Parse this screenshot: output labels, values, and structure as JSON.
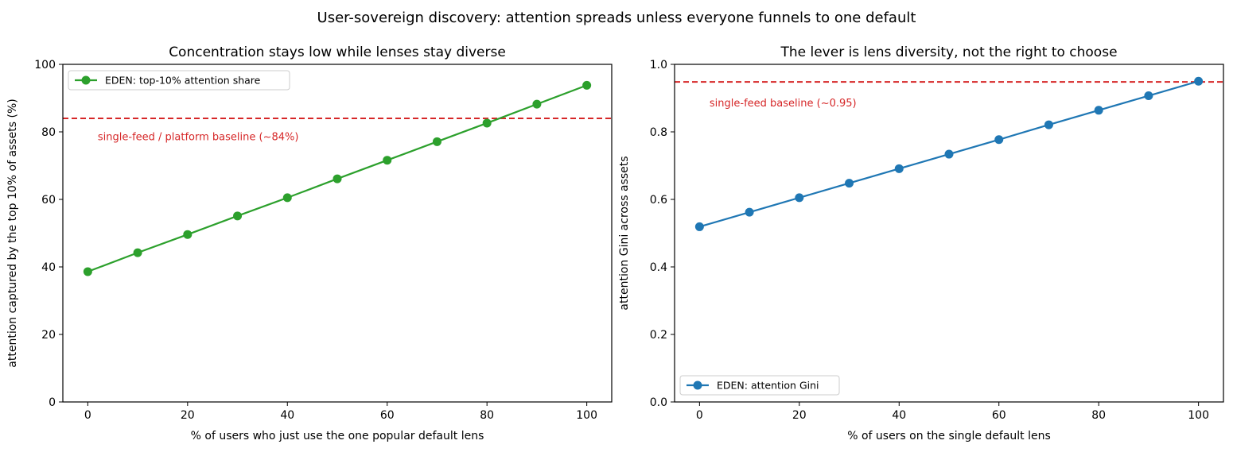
{
  "figure": {
    "suptitle": "User-sovereign discovery: attention spreads unless everyone funnels to one default"
  },
  "chart_data": [
    {
      "type": "line",
      "title": "Concentration stays low while lenses stay diverse",
      "xlabel": "% of users who just use the one popular default lens",
      "ylabel": "attention captured by the top 10% of assets (%)",
      "x": [
        0,
        10,
        20,
        30,
        40,
        50,
        60,
        70,
        80,
        90,
        100
      ],
      "xlim": [
        -5,
        105
      ],
      "ylim": [
        0,
        100
      ],
      "xticks": [
        0,
        20,
        40,
        60,
        80,
        100
      ],
      "yticks": [
        0,
        20,
        40,
        60,
        80,
        100
      ],
      "tick_format": "int",
      "grid": false,
      "legend_position": "upper-left",
      "series": [
        {
          "name": "EDEN: top-10% attention share",
          "color": "#2ca02c",
          "marker": "circle",
          "values": [
            38.6,
            44.2,
            49.6,
            55.1,
            60.5,
            66.1,
            71.6,
            77.1,
            82.6,
            88.2,
            93.8
          ]
        }
      ],
      "reference_lines": [
        {
          "y": 84,
          "color": "#d62728",
          "style": "dashed",
          "label": "single-feed / platform baseline (~84%)",
          "label_x": 2,
          "label_y": 78.5
        }
      ]
    },
    {
      "type": "line",
      "title": "The lever is lens diversity, not the right to choose",
      "xlabel": "% of users on the single default lens",
      "ylabel": "attention Gini across assets",
      "x": [
        0,
        10,
        20,
        30,
        40,
        50,
        60,
        70,
        80,
        90,
        100
      ],
      "xlim": [
        -5,
        105
      ],
      "ylim": [
        0,
        1.0
      ],
      "xticks": [
        0,
        20,
        40,
        60,
        80,
        100
      ],
      "yticks": [
        0,
        0.2,
        0.4,
        0.6,
        0.8,
        1.0
      ],
      "tick_format": "one_decimal",
      "grid": false,
      "legend_position": "lower-left",
      "series": [
        {
          "name": "EDEN: attention Gini",
          "color": "#1f77b4",
          "marker": "circle",
          "values": [
            0.519,
            0.562,
            0.605,
            0.648,
            0.691,
            0.734,
            0.777,
            0.821,
            0.864,
            0.907,
            0.95
          ]
        }
      ],
      "reference_lines": [
        {
          "y": 0.948,
          "color": "#d62728",
          "style": "dashed",
          "label": "single-feed baseline (~0.95)",
          "label_x": 2,
          "label_y": 0.885
        }
      ]
    }
  ]
}
